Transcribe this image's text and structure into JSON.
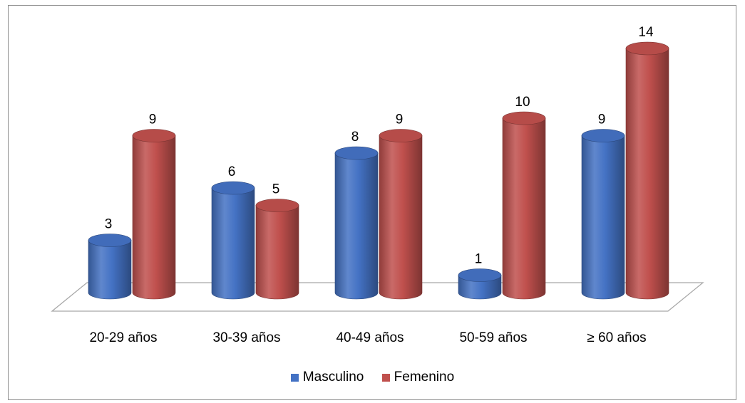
{
  "chart_data": {
    "type": "bar",
    "categories": [
      "20-29 años",
      "30-39 años",
      "40-49 años",
      "50-59 años",
      "≥ 60 años"
    ],
    "series": [
      {
        "name": "Masculino",
        "values": [
          3,
          6,
          8,
          1,
          9
        ],
        "color": "#4472c4"
      },
      {
        "name": "Femenino",
        "values": [
          9,
          5,
          9,
          10,
          14
        ],
        "color": "#c0504d"
      }
    ],
    "title": "",
    "xlabel": "",
    "ylabel": "",
    "ylim": [
      0,
      14
    ],
    "grid": false,
    "legend": "bottom",
    "style": "3d-cylinder"
  }
}
